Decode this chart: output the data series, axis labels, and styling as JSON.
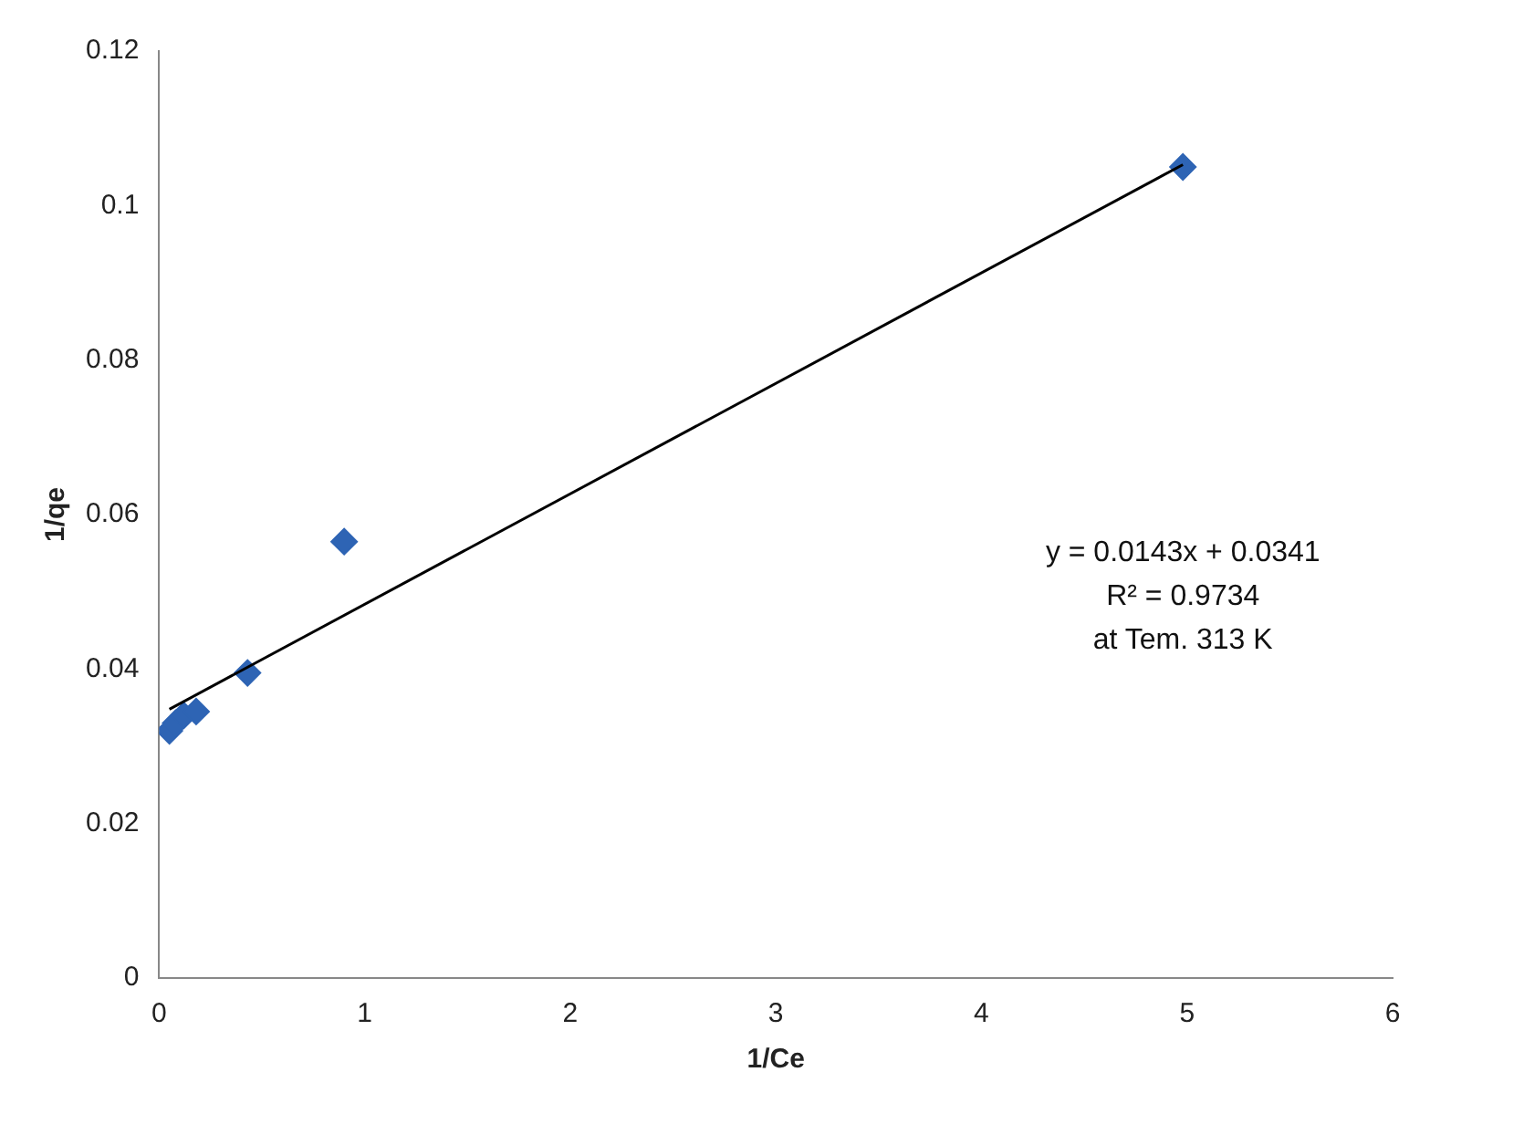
{
  "chart_data": {
    "type": "scatter",
    "xlabel": "1/Ce",
    "ylabel": "1/qe",
    "xlim": [
      0,
      6
    ],
    "xticks": [
      0,
      1,
      2,
      3,
      4,
      5,
      6
    ],
    "ylim": [
      0,
      0.12
    ],
    "yticks": [
      0,
      0.02,
      0.04,
      0.06,
      0.08,
      0.1,
      0.12
    ],
    "grid": false,
    "legend": false,
    "marker": "diamond",
    "series": [
      {
        "type": "scatter",
        "color": "#2e64b4",
        "x": [
          0.05,
          0.08,
          0.12,
          0.18,
          0.43,
          0.9,
          4.98
        ],
        "values": [
          0.032,
          0.033,
          0.034,
          0.0345,
          0.0395,
          0.0565,
          0.105
        ]
      },
      {
        "type": "line",
        "color": "#000000",
        "marker": "none",
        "line_style": "solid",
        "x": [
          0.05,
          4.98
        ],
        "values": [
          0.0348,
          0.1053
        ]
      }
    ],
    "annotations": [
      "y = 0.0143x + 0.0341",
      "R² = 0.9734",
      "at Tem. 313 K"
    ]
  }
}
